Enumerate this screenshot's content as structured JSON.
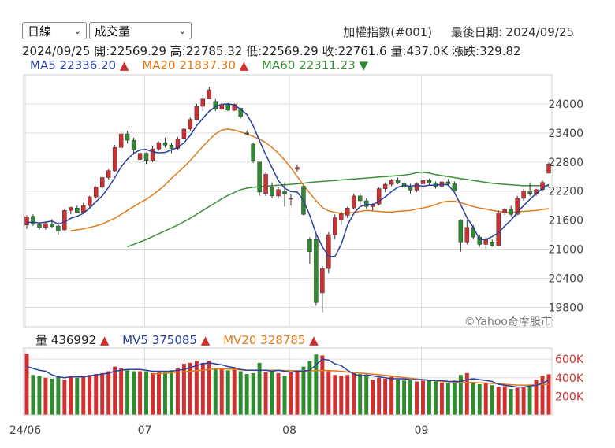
{
  "controls": {
    "period": "日線",
    "indicator": "成交量"
  },
  "header": {
    "index_name": "加權指數(#001)",
    "last_date_label": "最後日期: 2024/09/25"
  },
  "ohlc_line": {
    "date": "2024/09/25",
    "open": "開:22569.29",
    "high": "高:22785.32",
    "low": "低:22569.29",
    "close": "收:22761.6",
    "volume": "量:437.0K",
    "change": "漲跌:329.82"
  },
  "ma_legend": [
    {
      "name": "MA5",
      "value": "22336.20",
      "arrow": "▲",
      "color": "#2a3f9e",
      "arrow_color": "#d03030"
    },
    {
      "name": "MA20",
      "value": "21837.30",
      "arrow": "▲",
      "color": "#e07a1a",
      "arrow_color": "#d03030"
    },
    {
      "name": "MA60",
      "value": "22311.23",
      "arrow": "▼",
      "color": "#3a8f3a",
      "arrow_color": "#2e8b2e"
    }
  ],
  "vol_legend": [
    {
      "name": "量",
      "value": "436992",
      "arrow": "▲",
      "color": "#222",
      "arrow_color": "#d03030"
    },
    {
      "name": "MV5",
      "value": "375085",
      "arrow": "▲",
      "color": "#2a3f9e",
      "arrow_color": "#d03030"
    },
    {
      "name": "MV20",
      "value": "328785",
      "arrow": "▲",
      "color": "#e07a1a",
      "arrow_color": "#d03030"
    }
  ],
  "watermark": "©Yahoo奇摩股市",
  "colors": {
    "up": "#d03030",
    "down": "#2e8b2e",
    "ma5": "#2a3f9e",
    "ma20": "#e07a1a",
    "ma60": "#3a8f3a",
    "grid": "#dddddd"
  },
  "chart_data": {
    "type": "candlestick",
    "price_axis": {
      "ticks": [
        19800,
        20400,
        21000,
        21600,
        22200,
        22800,
        23400,
        24000
      ],
      "range": [
        19400,
        24600
      ]
    },
    "volume_axis": {
      "ticks": [
        "200K",
        "400K",
        "600K"
      ],
      "tick_values": [
        200,
        400,
        600
      ],
      "range": [
        0,
        720
      ],
      "unit": "K"
    },
    "x_labels": [
      {
        "label": "24/06",
        "index": 0
      },
      {
        "label": "07",
        "index": 19
      },
      {
        "label": "08",
        "index": 42
      },
      {
        "label": "09",
        "index": 63
      }
    ],
    "candles": [
      [
        21500,
        21700,
        21420,
        21670
      ],
      [
        21680,
        21720,
        21480,
        21520
      ],
      [
        21510,
        21560,
        21400,
        21450
      ],
      [
        21450,
        21560,
        21400,
        21530
      ],
      [
        21520,
        21620,
        21440,
        21470
      ],
      [
        21480,
        21560,
        21300,
        21380
      ],
      [
        21400,
        21840,
        21380,
        21800
      ],
      [
        21800,
        21880,
        21720,
        21860
      ],
      [
        21850,
        21900,
        21740,
        21760
      ],
      [
        21760,
        21960,
        21740,
        21900
      ],
      [
        21900,
        22100,
        21860,
        22080
      ],
      [
        22080,
        22300,
        22050,
        22280
      ],
      [
        22280,
        22520,
        22250,
        22480
      ],
      [
        22480,
        22650,
        22440,
        22620
      ],
      [
        22620,
        23150,
        22600,
        23100
      ],
      [
        23100,
        23420,
        23050,
        23380
      ],
      [
        23380,
        23440,
        23180,
        23250
      ],
      [
        23250,
        23300,
        22950,
        23050
      ],
      [
        22850,
        23050,
        22780,
        22980
      ],
      [
        22980,
        23000,
        22760,
        22830
      ],
      [
        22830,
        23120,
        22800,
        23070
      ],
      [
        23070,
        23220,
        23040,
        23200
      ],
      [
        23200,
        23300,
        23100,
        23150
      ],
      [
        23150,
        23200,
        22980,
        23080
      ],
      [
        23080,
        23320,
        23050,
        23280
      ],
      [
        23280,
        23500,
        23250,
        23480
      ],
      [
        23480,
        23720,
        23450,
        23680
      ],
      [
        23680,
        24000,
        23650,
        23950
      ],
      [
        23950,
        24180,
        23850,
        24100
      ],
      [
        24100,
        24350,
        24100,
        24290
      ],
      [
        24050,
        24100,
        23850,
        23890
      ],
      [
        23890,
        24050,
        23860,
        23990
      ],
      [
        23990,
        24020,
        23850,
        23870
      ],
      [
        23870,
        24010,
        23850,
        23990
      ],
      [
        23910,
        23920,
        23700,
        23740
      ],
      [
        23400,
        23450,
        23350,
        23380
      ],
      [
        23170,
        23200,
        22780,
        22820
      ],
      [
        22800,
        22800,
        22100,
        22180
      ],
      [
        22150,
        22600,
        22100,
        22550
      ],
      [
        22280,
        22380,
        22050,
        22100
      ],
      [
        22100,
        22280,
        22050,
        22230
      ],
      [
        22200,
        22380,
        21880,
        22150
      ],
      [
        22050,
        22150,
        21900,
        22050
      ],
      [
        22650,
        22750,
        22600,
        22690
      ],
      [
        22300,
        22310,
        21700,
        21720
      ],
      [
        21200,
        21250,
        20700,
        20950
      ],
      [
        21200,
        21300,
        19830,
        19900
      ],
      [
        20100,
        20650,
        19700,
        20600
      ],
      [
        20600,
        21350,
        20500,
        21300
      ],
      [
        21300,
        21720,
        21200,
        21650
      ],
      [
        21600,
        21780,
        21500,
        21730
      ],
      [
        21700,
        21880,
        21640,
        21850
      ],
      [
        21850,
        22150,
        21820,
        22100
      ],
      [
        22100,
        22160,
        21900,
        22000
      ],
      [
        22000,
        22050,
        21840,
        21880
      ],
      [
        21880,
        21950,
        21800,
        21930
      ],
      [
        21930,
        22280,
        21900,
        22250
      ],
      [
        22250,
        22380,
        22180,
        22340
      ],
      [
        22340,
        22450,
        22300,
        22420
      ],
      [
        22420,
        22480,
        22340,
        22370
      ],
      [
        22370,
        22420,
        22250,
        22280
      ],
      [
        22280,
        22350,
        22150,
        22220
      ],
      [
        22220,
        22380,
        22180,
        22350
      ],
      [
        22350,
        22440,
        22300,
        22420
      ],
      [
        22420,
        22460,
        22320,
        22370
      ],
      [
        22370,
        22400,
        22250,
        22300
      ],
      [
        22300,
        22420,
        22250,
        22390
      ],
      [
        22390,
        22450,
        22300,
        22350
      ],
      [
        22350,
        22400,
        22180,
        22200
      ],
      [
        21600,
        21620,
        20950,
        21150
      ],
      [
        21150,
        21600,
        21100,
        21450
      ],
      [
        21450,
        21500,
        21200,
        21250
      ],
      [
        21250,
        21300,
        21050,
        21100
      ],
      [
        21100,
        21250,
        21000,
        21200
      ],
      [
        21150,
        21200,
        21050,
        21080
      ],
      [
        21080,
        21800,
        21060,
        21750
      ],
      [
        21750,
        21850,
        21700,
        21820
      ],
      [
        21820,
        21900,
        21680,
        21720
      ],
      [
        21720,
        22100,
        21700,
        22050
      ],
      [
        22050,
        22250,
        22000,
        22200
      ],
      [
        22200,
        22380,
        22100,
        22150
      ],
      [
        22150,
        22250,
        22100,
        22230
      ],
      [
        22230,
        22420,
        22200,
        22380
      ],
      [
        22570,
        22790,
        22570,
        22760
      ]
    ],
    "ma5": [
      21550,
      21560,
      21540,
      21560,
      21580,
      21520,
      21560,
      21640,
      21680,
      21740,
      21850,
      21980,
      22100,
      22280,
      22480,
      22700,
      22860,
      22980,
      23050,
      23060,
      23010,
      22990,
      23000,
      23050,
      23100,
      23200,
      23350,
      23550,
      23700,
      23850,
      23940,
      23990,
      24000,
      23980,
      23890,
      23780,
      23550,
      23240,
      22950,
      22680,
      22420,
      22260,
      22190,
      22180,
      22010,
      21700,
      21320,
      21050,
      20850,
      20850,
      21100,
      21500,
      21740,
      21880,
      21920,
      21920,
      21990,
      22080,
      22190,
      22280,
      22320,
      22300,
      22320,
      22300,
      22320,
      22320,
      22340,
      22330,
      22170,
      21920,
      21650,
      21450,
      21200,
      21200,
      21260,
      21340,
      21480,
      21600,
      21760,
      21900,
      22030,
      22150,
      22250,
      22336
    ],
    "ma20": [
      null,
      null,
      null,
      null,
      null,
      null,
      null,
      21380,
      21400,
      21420,
      21450,
      21480,
      21520,
      21580,
      21640,
      21720,
      21800,
      21880,
      21960,
      22030,
      22120,
      22220,
      22330,
      22460,
      22580,
      22700,
      22830,
      22980,
      23120,
      23260,
      23380,
      23460,
      23480,
      23460,
      23420,
      23380,
      23330,
      23270,
      23200,
      23100,
      22980,
      22840,
      22680,
      22500,
      22320,
      22160,
      22000,
      21860,
      21790,
      21760,
      21740,
      21750,
      21760,
      21780,
      21800,
      21790,
      21780,
      21770,
      21770,
      21780,
      21790,
      21800,
      21830,
      21850,
      21880,
      21920,
      21970,
      21990,
      21990,
      21960,
      21920,
      21880,
      21850,
      21830,
      21800,
      21780,
      21760,
      21760,
      21770,
      21780,
      21790,
      21800,
      21820,
      21837
    ],
    "ma60": [
      null,
      null,
      null,
      null,
      null,
      null,
      null,
      null,
      null,
      null,
      null,
      null,
      null,
      null,
      null,
      null,
      21050,
      21100,
      21150,
      21200,
      21260,
      21320,
      21380,
      21440,
      21500,
      21570,
      21640,
      21720,
      21800,
      21880,
      21960,
      22040,
      22110,
      22170,
      22230,
      22260,
      22280,
      22290,
      22300,
      22310,
      22320,
      22330,
      22340,
      22350,
      22360,
      22380,
      22390,
      22400,
      22410,
      22420,
      22430,
      22440,
      22450,
      22460,
      22470,
      22480,
      22490,
      22500,
      22510,
      22520,
      22530,
      22550,
      22580,
      22590,
      22570,
      22540,
      22520,
      22500,
      22480,
      22460,
      22440,
      22420,
      22400,
      22380,
      22360,
      22350,
      22340,
      22330,
      22320,
      22310,
      22312,
      22312,
      22311,
      22311
    ],
    "volumes": [
      660,
      430,
      420,
      400,
      390,
      420,
      380,
      420,
      400,
      420,
      430,
      440,
      450,
      470,
      520,
      500,
      480,
      470,
      470,
      470,
      450,
      460,
      470,
      480,
      500,
      550,
      560,
      580,
      560,
      580,
      490,
      500,
      480,
      500,
      470,
      440,
      450,
      560,
      460,
      470,
      450,
      420,
      460,
      480,
      520,
      580,
      650,
      640,
      470,
      430,
      420,
      430,
      460,
      440,
      420,
      380,
      400,
      390,
      410,
      380,
      370,
      380,
      360,
      370,
      380,
      360,
      350,
      340,
      370,
      430,
      450,
      350,
      330,
      340,
      320,
      300,
      310,
      280,
      290,
      300,
      320,
      380,
      420,
      437
    ],
    "mv5": [
      520,
      500,
      480,
      470,
      430,
      410,
      400,
      410,
      410,
      410,
      420,
      430,
      440,
      450,
      470,
      480,
      490,
      490,
      490,
      480,
      470,
      470,
      470,
      470,
      480,
      490,
      510,
      530,
      550,
      560,
      550,
      540,
      520,
      510,
      490,
      480,
      480,
      480,
      480,
      470,
      480,
      470,
      460,
      470,
      470,
      480,
      540,
      600,
      590,
      550,
      530,
      480,
      440,
      420,
      430,
      420,
      410,
      400,
      390,
      390,
      390,
      380,
      380,
      380,
      370,
      370,
      370,
      360,
      360,
      360,
      380,
      390,
      380,
      370,
      360,
      330,
      320,
      310,
      300,
      300,
      310,
      320,
      340,
      375
    ],
    "mv20": [
      null,
      null,
      null,
      null,
      null,
      null,
      null,
      null,
      null,
      null,
      null,
      null,
      null,
      null,
      null,
      null,
      null,
      null,
      null,
      null,
      440,
      445,
      450,
      455,
      460,
      465,
      470,
      475,
      480,
      490,
      495,
      495,
      495,
      490,
      485,
      480,
      480,
      480,
      480,
      480,
      480,
      478,
      476,
      475,
      475,
      474,
      476,
      478,
      478,
      474,
      470,
      462,
      455,
      450,
      445,
      440,
      432,
      425,
      418,
      410,
      402,
      395,
      388,
      380,
      374,
      368,
      362,
      358,
      354,
      352,
      350,
      348,
      346,
      344,
      340,
      336,
      330,
      325,
      322,
      320,
      322,
      324,
      326,
      329
    ]
  }
}
